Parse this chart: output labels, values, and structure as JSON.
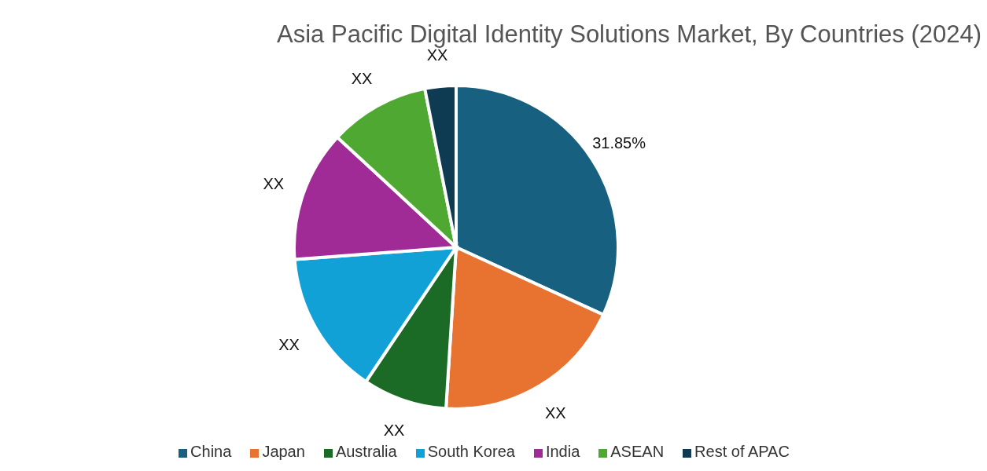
{
  "chart_data": {
    "type": "pie",
    "title": "Asia Pacific Digital Identity Solutions Market, By Countries (2024)",
    "categories": [
      "China",
      "Japan",
      "Australia",
      "South Korea",
      "India",
      "ASEAN",
      "Rest of APAC"
    ],
    "values": [
      31.85,
      19.15,
      8.4,
      14.4,
      13.1,
      10.0,
      3.1
    ],
    "colors": [
      "#17607f",
      "#e87331",
      "#1b6b26",
      "#12a1d6",
      "#a02a96",
      "#4ea832",
      "#0e3a52"
    ],
    "value_labels": [
      "31.85%",
      "XX",
      "XX",
      "XX",
      "XX",
      "XX",
      "XX"
    ],
    "legend": "bottom"
  }
}
